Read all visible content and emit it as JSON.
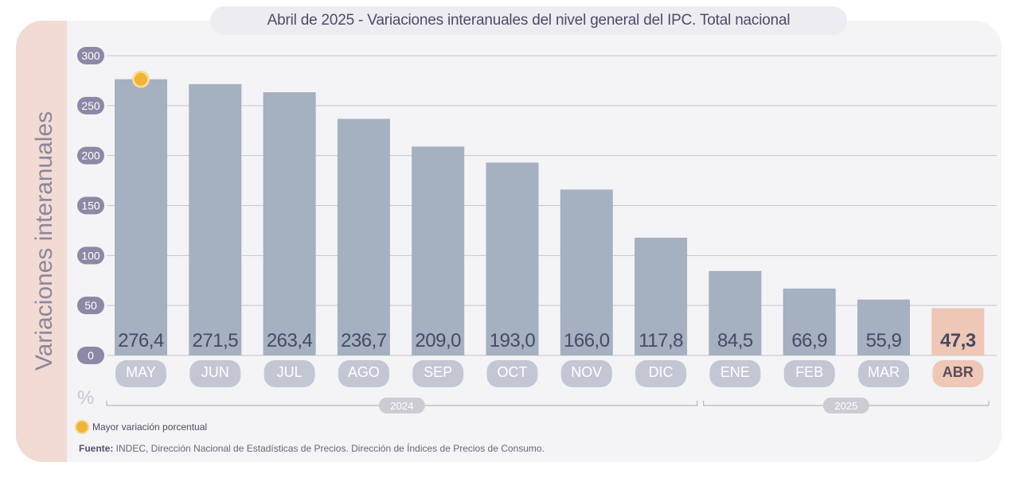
{
  "title": "Abril de 2025 - Variaciones interanuales del nivel general del IPC. Total nacional",
  "colors": {
    "bar": "#a5b0c0",
    "bar_highlight": "#eec7b6",
    "value_text": "#454a66",
    "month_pill": "#c3c7d4",
    "month_pill_highlight": "#eec7b6",
    "y_tick_pill": "#8d88a6",
    "marker": "#f0b534",
    "gridline": "#c7c6cf"
  },
  "chart_data": {
    "type": "bar",
    "ylabel": "Variaciones interanuales",
    "unit": "%",
    "ylim": [
      0,
      300
    ],
    "yticks": [
      "0",
      "50",
      "100",
      "150",
      "200",
      "250",
      "300"
    ],
    "grid": true,
    "categories": [
      "MAY",
      "JUN",
      "JUL",
      "AGO",
      "SEP",
      "OCT",
      "NOV",
      "DIC",
      "ENE",
      "FEB",
      "MAR",
      "ABR"
    ],
    "values": [
      276.4,
      271.5,
      263.4,
      236.7,
      209.0,
      193.0,
      166.0,
      117.8,
      84.5,
      66.9,
      55.9,
      47.3
    ],
    "value_labels": [
      "276,4",
      "271,5",
      "263,4",
      "236,7",
      "209,0",
      "193,0",
      "166,0",
      "117,8",
      "84,5",
      "66,9",
      "55,9",
      "47,3"
    ],
    "highlight_category": "ABR",
    "max_marker_category": "MAY",
    "year_groups": [
      {
        "label": "2024",
        "from": "MAY",
        "to": "DIC"
      },
      {
        "label": "2025",
        "from": "ENE",
        "to": "ABR"
      }
    ],
    "legend": [
      "Mayor variación porcentual"
    ]
  },
  "source": {
    "label": "Fuente:",
    "text": " INDEC, Dirección Nacional de Estadísticas de Precios. Dirección de Índices de Precios de Consumo."
  }
}
